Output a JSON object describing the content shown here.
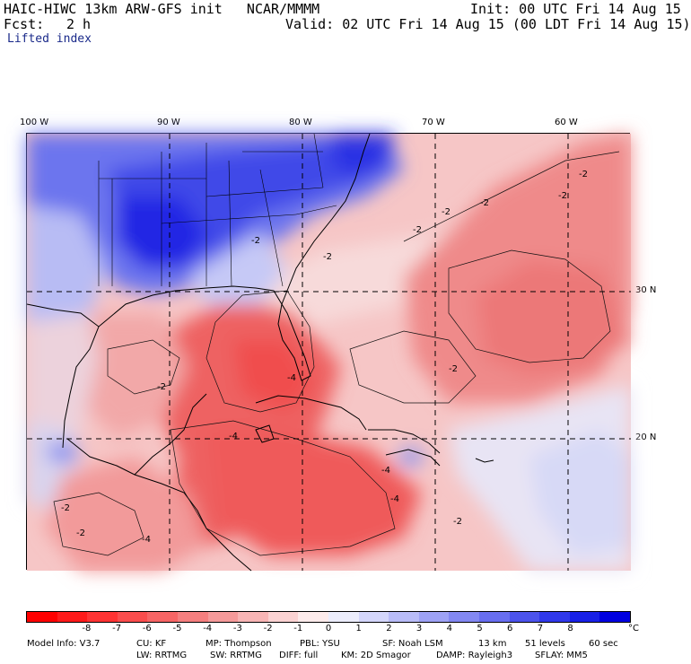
{
  "header": {
    "model_title": "HAIC-HIWC 13km ARW-GFS init   NCAR/MMMM",
    "init": "Init: 00 UTC Fri 14 Aug 15",
    "fcst_label": "Fcst:",
    "fcst_value": "2 h",
    "valid": "Valid: 02 UTC Fri 14 Aug 15 (00 LDT Fri 14 Aug 15)",
    "field": "Lifted index"
  },
  "axes": {
    "longitudes": [
      "100 W",
      "90 W",
      "80 W",
      "70 W",
      "60 W"
    ],
    "latitudes": [
      "30 N",
      "20 N"
    ]
  },
  "contour_labels": [
    "-2",
    "-2",
    "-2",
    "-2",
    "-2",
    "-2",
    "-2",
    "-2",
    "-4",
    "-4",
    "-4",
    "-4",
    "-4",
    "-2",
    "-2",
    "-2",
    "-2"
  ],
  "colorbar": {
    "colors": [
      "#ff0000",
      "#ff1a1a",
      "#ff3333",
      "#fa4d4d",
      "#f76565",
      "#f57f7f",
      "#f59a9a",
      "#f8b5b5",
      "#fbd2d2",
      "#fdebeb",
      "#ecedfc",
      "#d4d6fb",
      "#b9bcf8",
      "#9ea2f5",
      "#8388f2",
      "#686ef0",
      "#4c53ec",
      "#3038ea",
      "#1820e6",
      "#0000e0"
    ],
    "labels": [
      "-8",
      "-7",
      "-6",
      "-5",
      "-4",
      "-3",
      "-2",
      "-1",
      "0",
      "1",
      "2",
      "3",
      "4",
      "5",
      "6",
      "7",
      "8"
    ],
    "unit": "°C"
  },
  "model_info": {
    "line1": [
      "Model Info: V3.7",
      "CU: KF",
      "MP: Thompson",
      "PBL: YSU",
      "SF: Noah LSM",
      "13 km",
      "51 levels",
      "60 sec"
    ],
    "line2": [
      "LW: RRTMG",
      "SW: RRTMG",
      "DIFF: full",
      "KM: 2D Smagor",
      "DAMP: Rayleigh3",
      "SFLAY: MM5"
    ]
  }
}
